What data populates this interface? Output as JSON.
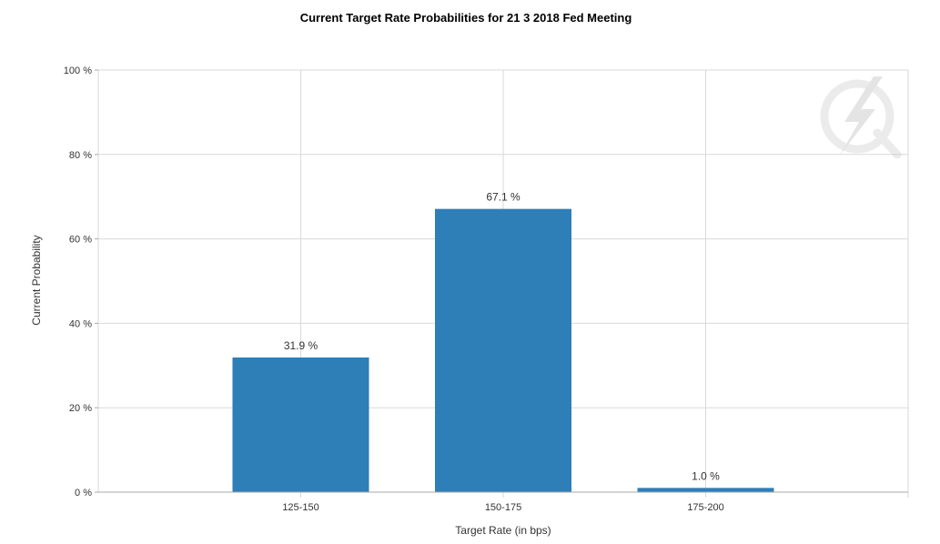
{
  "chart_data": {
    "type": "bar",
    "title": "Current Target Rate Probabilities for 21 3 2018 Fed Meeting",
    "xlabel": "Target Rate (in bps)",
    "ylabel": "Current Probability",
    "categories": [
      "125-150",
      "150-175",
      "175-200"
    ],
    "values": [
      31.9,
      67.1,
      1.0
    ],
    "value_labels": [
      "31.9 %",
      "67.1 %",
      "1.0 %"
    ],
    "ylim": [
      0,
      100
    ],
    "yticks": [
      0,
      20,
      40,
      60,
      80,
      100
    ],
    "ytick_labels": [
      "0 %",
      "20 %",
      "40 %",
      "60 %",
      "80 %",
      "100 %"
    ],
    "grid": true,
    "legend": "none",
    "bar_color": "#2e7eb8",
    "watermark_icon": "lightning-q-logo-icon"
  }
}
